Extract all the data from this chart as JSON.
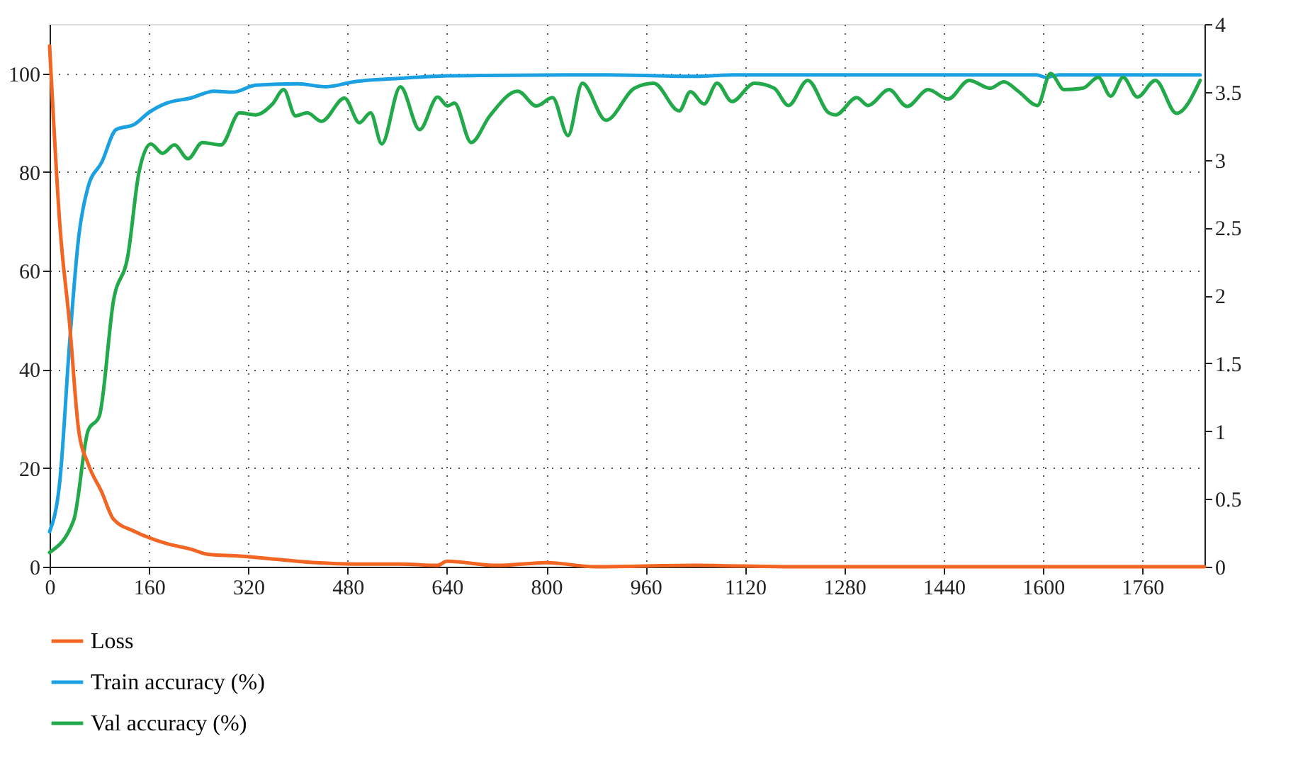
{
  "chart_data": {
    "type": "line",
    "xlim": [
      0,
      1860
    ],
    "xticks": [
      0,
      160,
      320,
      480,
      640,
      800,
      960,
      1120,
      1280,
      1440,
      1600,
      1760
    ],
    "ylim": [
      0,
      110
    ],
    "yticks": [
      0,
      20,
      40,
      60,
      80,
      100
    ],
    "y2lim": [
      0,
      4
    ],
    "y2ticks": [
      0,
      0.5,
      1,
      1.5,
      2,
      2.5,
      3,
      3.5,
      4
    ],
    "grid": true,
    "legend": "bottom",
    "series": [
      {
        "name": "Loss",
        "color": "#f26522",
        "axis": "y2",
        "x": [
          0,
          17,
          32,
          47,
          62,
          84,
          103,
          137,
          189,
          227,
          257,
          302,
          377,
          430,
          490,
          565,
          625,
          640,
          720,
          800,
          880,
          1040,
          1200,
          1500,
          1860
        ],
        "values": [
          3.84,
          2.49,
          1.8,
          1.0,
          0.76,
          0.55,
          0.35,
          0.26,
          0.17,
          0.13,
          0.09,
          0.08,
          0.05,
          0.03,
          0.02,
          0.02,
          0.01,
          0.04,
          0.01,
          0.03,
          0.0,
          0.01,
          0.0,
          0.0,
          0.0
        ]
      },
      {
        "name": "Train accuracy (%)",
        "color": "#1ba1e2",
        "x": [
          0,
          17,
          32,
          47,
          62,
          84,
          107,
          137,
          159,
          189,
          227,
          265,
          295,
          332,
          400,
          445,
          490,
          565,
          641,
          700,
          900,
          1040,
          1100,
          1200,
          1590,
          1605,
          1625,
          1853
        ],
        "values": [
          7.1,
          18,
          45,
          67,
          77,
          82,
          88.6,
          89.7,
          92,
          94,
          95,
          96.4,
          96.2,
          97.6,
          97.9,
          97.3,
          98.3,
          99,
          99.5,
          99.6,
          99.7,
          99.4,
          99.7,
          99.7,
          99.7,
          99.2,
          99.7,
          99.7
        ]
      },
      {
        "name": "Val accuracy (%)",
        "color": "#22a94a",
        "x": [
          0,
          39,
          62,
          80,
          103,
          126,
          144,
          163,
          182,
          201,
          223,
          246,
          276,
          306,
          332,
          359,
          377,
          396,
          415,
          438,
          475,
          499,
          517,
          535,
          565,
          596,
          625,
          641,
          652,
          679,
          709,
          754,
          784,
          810,
          835,
          858,
          896,
          942,
          973,
          1014,
          1032,
          1054,
          1075,
          1099,
          1135,
          1167,
          1190,
          1221,
          1255,
          1266,
          1300,
          1318,
          1352,
          1381,
          1415,
          1447,
          1481,
          1515,
          1537,
          1560,
          1591,
          1612,
          1634,
          1664,
          1689,
          1709,
          1729,
          1752,
          1781,
          1815,
          1853
        ],
        "values": [
          2.9,
          9.5,
          27.6,
          30.5,
          54,
          63,
          80,
          85.7,
          83.8,
          85.5,
          82.7,
          86,
          85.5,
          92,
          91.6,
          93.8,
          96.7,
          91.4,
          92,
          90.3,
          95,
          90,
          92,
          85.7,
          97.3,
          88.6,
          95.2,
          93.4,
          94,
          86,
          91.4,
          96.4,
          93.4,
          95.1,
          87.4,
          98,
          90.5,
          97,
          98,
          92.4,
          96.3,
          93.8,
          98,
          94.3,
          98,
          97,
          93.5,
          98.6,
          92,
          91.6,
          95.1,
          93.5,
          96.7,
          93.3,
          96.7,
          94.8,
          98.6,
          97,
          98.3,
          96.4,
          93.5,
          100,
          96.7,
          97,
          99.2,
          95.4,
          99.2,
          95.2,
          98.6,
          91.9,
          98.6
        ]
      }
    ]
  }
}
